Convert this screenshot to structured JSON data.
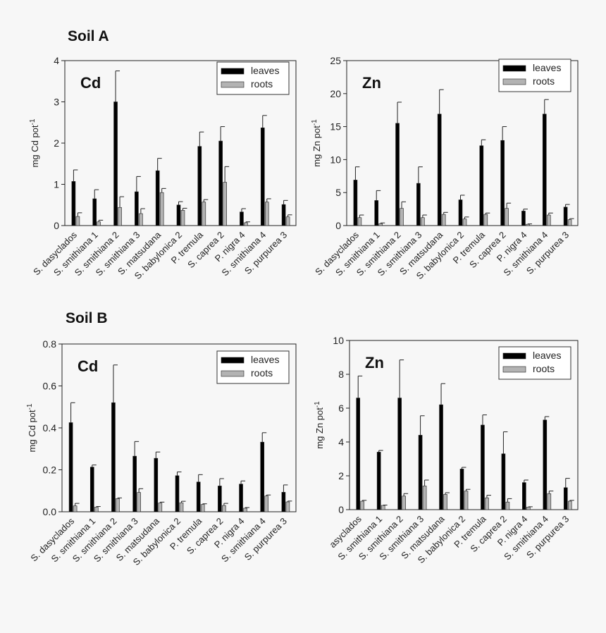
{
  "figure": {
    "soil_a_heading": "Soil A",
    "soil_b_heading": "Soil B"
  },
  "chart_data": [
    {
      "type": "bar",
      "section": "Soil A",
      "title": "Cd",
      "ylabel": "mg Cd pot",
      "ylabel_sup": "-1",
      "ylim": [
        0,
        4
      ],
      "yticks": [
        "0",
        "1",
        "2",
        "3",
        "4"
      ],
      "ytick_values": [
        0,
        1,
        2,
        3,
        4
      ],
      "legend": "top-right",
      "grid": false,
      "categories": [
        "S. dasyclados",
        "S. smithiana 1",
        "S. smithiana 2",
        "S. smithiana 3",
        "S. matsudana",
        "S. babylonica 2",
        "P. tremula",
        "S. caprea 2",
        "P. nigra 4",
        "S. smithiana 4",
        "S. purpurea 3"
      ],
      "series": [
        {
          "name": "leaves",
          "color": "#000000",
          "values": [
            1.07,
            0.65,
            3.0,
            0.82,
            1.33,
            0.5,
            1.92,
            2.05,
            0.33,
            2.37,
            0.51
          ],
          "errors": [
            0.28,
            0.22,
            0.75,
            0.37,
            0.3,
            0.08,
            0.35,
            0.35,
            0.08,
            0.3,
            0.1
          ]
        },
        {
          "name": "roots",
          "color": "#b3b3b3",
          "values": [
            0.22,
            0.09,
            0.44,
            0.29,
            0.8,
            0.37,
            0.57,
            1.05,
            0.07,
            0.57,
            0.21
          ],
          "errors": [
            0.09,
            0.04,
            0.26,
            0.12,
            0.1,
            0.05,
            0.06,
            0.38,
            0.02,
            0.08,
            0.05
          ]
        }
      ]
    },
    {
      "type": "bar",
      "section": "Soil A",
      "title": "Zn",
      "ylabel": "mg Zn pot",
      "ylabel_sup": "-1",
      "ylim": [
        0,
        25
      ],
      "yticks": [
        "0",
        "5",
        "10",
        "15",
        "20",
        "25"
      ],
      "ytick_values": [
        0,
        5,
        10,
        15,
        20,
        25
      ],
      "legend": "top-right",
      "grid": false,
      "categories": [
        "S. dasyclados",
        "S. smithiana 1",
        "S. smithiana 2",
        "S. smithiana 3",
        "S. matsudana",
        "S. babylonica 2",
        "P. tremula",
        "S. caprea 2",
        "P. nigra 4",
        "S. smithiana 4",
        "S. purpurea 3"
      ],
      "series": [
        {
          "name": "leaves",
          "color": "#000000",
          "values": [
            6.9,
            3.8,
            15.5,
            6.4,
            16.9,
            3.9,
            12.1,
            12.9,
            2.2,
            16.9,
            2.8
          ],
          "errors": [
            2.0,
            1.5,
            3.2,
            2.5,
            3.7,
            0.7,
            0.9,
            2.1,
            0.3,
            2.2,
            0.4
          ]
        },
        {
          "name": "roots",
          "color": "#b3b3b3",
          "values": [
            1.2,
            0.3,
            2.6,
            1.2,
            1.7,
            1.0,
            1.7,
            2.6,
            0.2,
            1.6,
            0.9
          ],
          "errors": [
            0.4,
            0.1,
            1.0,
            0.4,
            0.3,
            0.3,
            0.2,
            0.8,
            0.05,
            0.3,
            0.15
          ]
        }
      ]
    },
    {
      "type": "bar",
      "section": "Soil B",
      "title": "Cd",
      "ylabel": "mg Cd pot",
      "ylabel_sup": "-1",
      "ylim": [
        0,
        0.8
      ],
      "yticks": [
        "0.0",
        "0.2",
        "0.4",
        "0.6",
        "0.8"
      ],
      "ytick_values": [
        0,
        0.2,
        0.4,
        0.6,
        0.8
      ],
      "legend": "top-right",
      "grid": false,
      "categories": [
        "S. dasyclados",
        "S. smithiana 1",
        "S. smithiana 2",
        "S. smithiana 3",
        "S. matsudana",
        "S. babylonica 2",
        "P. tremula",
        "S. caprea 2",
        "P. nigra 4",
        "S. smithiana 4",
        "S. purpurea 3"
      ],
      "series": [
        {
          "name": "leaves",
          "color": "#000000",
          "values": [
            0.425,
            0.213,
            0.52,
            0.265,
            0.255,
            0.172,
            0.142,
            0.123,
            0.132,
            0.332,
            0.093
          ],
          "errors": [
            0.095,
            0.01,
            0.18,
            0.07,
            0.03,
            0.018,
            0.035,
            0.035,
            0.015,
            0.045,
            0.035
          ]
        },
        {
          "name": "roots",
          "color": "#b3b3b3",
          "values": [
            0.028,
            0.022,
            0.063,
            0.092,
            0.042,
            0.043,
            0.035,
            0.03,
            0.017,
            0.075,
            0.047
          ],
          "errors": [
            0.012,
            0.003,
            0.003,
            0.018,
            0.004,
            0.007,
            0.003,
            0.01,
            0.003,
            0.005,
            0.004
          ]
        }
      ]
    },
    {
      "type": "bar",
      "section": "Soil B",
      "title": "Zn",
      "ylabel": "mg Zn pot",
      "ylabel_sup": "-1",
      "ylim": [
        0,
        10
      ],
      "yticks": [
        "0",
        "2",
        "4",
        "6",
        "8",
        "10"
      ],
      "ytick_values": [
        0,
        2,
        4,
        6,
        8,
        10
      ],
      "legend": "top-right",
      "grid": false,
      "categories": [
        "asyclados",
        "S. smithiana 1",
        "S. smithiana 2",
        "S. smithiana 3",
        "S. matsudana",
        "S. babylonica 2",
        "P. tremula",
        "S. caprea 2",
        "P. nigra 4",
        "S. smithiana 4",
        "S. purpurea 3"
      ],
      "series": [
        {
          "name": "leaves",
          "color": "#000000",
          "values": [
            6.6,
            3.4,
            6.6,
            4.4,
            6.2,
            2.4,
            5.0,
            3.3,
            1.6,
            5.3,
            1.3
          ],
          "errors": [
            1.3,
            0.1,
            2.25,
            1.15,
            1.25,
            0.1,
            0.6,
            1.3,
            0.15,
            0.2,
            0.55
          ]
        },
        {
          "name": "roots",
          "color": "#b3b3b3",
          "values": [
            0.5,
            0.25,
            0.8,
            1.4,
            0.9,
            1.1,
            0.7,
            0.45,
            0.15,
            0.95,
            0.5
          ],
          "errors": [
            0.05,
            0.02,
            0.15,
            0.35,
            0.1,
            0.1,
            0.15,
            0.2,
            0.02,
            0.15,
            0.05
          ]
        }
      ]
    }
  ]
}
